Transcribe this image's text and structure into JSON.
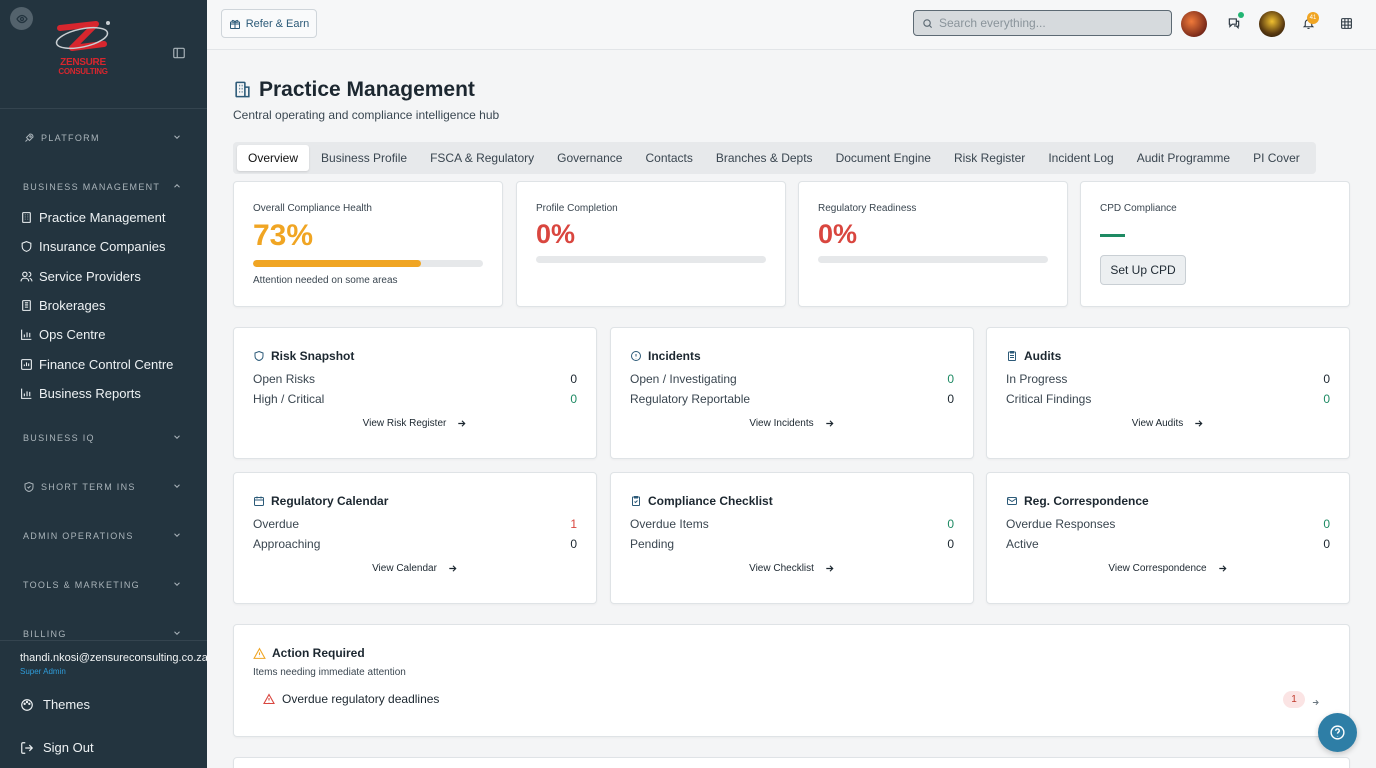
{
  "brand": {
    "name": "ZENSURE CONSULTING",
    "name_line1": "ZENSURE",
    "name_line2": "CONSULTING",
    "colors": {
      "brand_red": "#d7262e",
      "sidebar_bg": "#23343f",
      "accent_orange": "#f0a523",
      "danger_red": "#d9463f",
      "success_green": "#1e8a63"
    }
  },
  "sidebar": {
    "sections": [
      {
        "label": "PLATFORM",
        "icon": "rocket-icon",
        "expanded": false
      },
      {
        "label": "BUSINESS MANAGEMENT",
        "expanded": true
      },
      {
        "label": "BUSINESS IQ",
        "expanded": false
      },
      {
        "label": "SHORT TERM INS",
        "icon": "shield-icon",
        "expanded": false
      },
      {
        "label": "ADMIN OPERATIONS",
        "expanded": false
      },
      {
        "label": "TOOLS & MARKETING",
        "expanded": false
      },
      {
        "label": "BILLING",
        "expanded": false
      }
    ],
    "items": [
      {
        "label": "Practice Management",
        "icon": "building-icon"
      },
      {
        "label": "Insurance Companies",
        "icon": "shield-icon"
      },
      {
        "label": "Service Providers",
        "icon": "users-icon"
      },
      {
        "label": "Brokerages",
        "icon": "building-icon"
      },
      {
        "label": "Ops Centre",
        "icon": "bar-chart-icon"
      },
      {
        "label": "Finance Control Centre",
        "icon": "wallet-icon"
      },
      {
        "label": "Business Reports",
        "icon": "bar-chart-icon"
      }
    ],
    "user": {
      "email": "thandi.nkosi@zensureconsulting.co.za",
      "role": "Super Admin"
    },
    "themes_label": "Themes",
    "signout_label": "Sign Out"
  },
  "topbar": {
    "refer_label": "Refer & Earn",
    "search_placeholder": "Search everything...",
    "notification_count": "41"
  },
  "page": {
    "title": "Practice Management",
    "subtitle": "Central operating and compliance intelligence hub",
    "tabs": [
      {
        "label": "Overview",
        "active": true
      },
      {
        "label": "Business Profile"
      },
      {
        "label": "FSCA & Regulatory"
      },
      {
        "label": "Governance"
      },
      {
        "label": "Contacts"
      },
      {
        "label": "Branches & Depts"
      },
      {
        "label": "Document Engine"
      },
      {
        "label": "Risk Register"
      },
      {
        "label": "Incident Log"
      },
      {
        "label": "Audit Programme"
      },
      {
        "label": "PI Cover"
      }
    ]
  },
  "stats": {
    "compliance": {
      "label": "Overall Compliance Health",
      "value": "73%",
      "progress": 0.73,
      "note": "Attention needed on some areas"
    },
    "profile": {
      "label": "Profile Completion",
      "value": "0%",
      "progress": 0
    },
    "readiness": {
      "label": "Regulatory Readiness",
      "value": "0%",
      "progress": 0
    },
    "cpd": {
      "label": "CPD Compliance",
      "value": "—",
      "button": "Set Up CPD"
    }
  },
  "cards": {
    "risk": {
      "title": "Risk Snapshot",
      "rows": [
        {
          "label": "Open Risks",
          "value": "0"
        },
        {
          "label": "High / Critical",
          "value": "0"
        }
      ],
      "link": "View Risk Register"
    },
    "incidents": {
      "title": "Incidents",
      "rows": [
        {
          "label": "Open / Investigating",
          "value": "0"
        },
        {
          "label": "Regulatory Reportable",
          "value": "0"
        }
      ],
      "link": "View Incidents"
    },
    "audits": {
      "title": "Audits",
      "rows": [
        {
          "label": "In Progress",
          "value": "0"
        },
        {
          "label": "Critical Findings",
          "value": "0"
        }
      ],
      "link": "View Audits"
    },
    "calendar": {
      "title": "Regulatory Calendar",
      "rows": [
        {
          "label": "Overdue",
          "value": "1"
        },
        {
          "label": "Approaching",
          "value": "0"
        }
      ],
      "link": "View Calendar"
    },
    "checklist": {
      "title": "Compliance Checklist",
      "rows": [
        {
          "label": "Overdue Items",
          "value": "0"
        },
        {
          "label": "Pending",
          "value": "0"
        }
      ],
      "link": "View Checklist"
    },
    "correspondence": {
      "title": "Reg. Correspondence",
      "rows": [
        {
          "label": "Overdue Responses",
          "value": "0"
        },
        {
          "label": "Active",
          "value": "0"
        }
      ],
      "link": "View Correspondence"
    }
  },
  "action_required": {
    "title": "Action Required",
    "subtitle": "Items needing immediate attention",
    "items": [
      {
        "label": "Overdue regulatory deadlines",
        "count": "1"
      }
    ]
  }
}
